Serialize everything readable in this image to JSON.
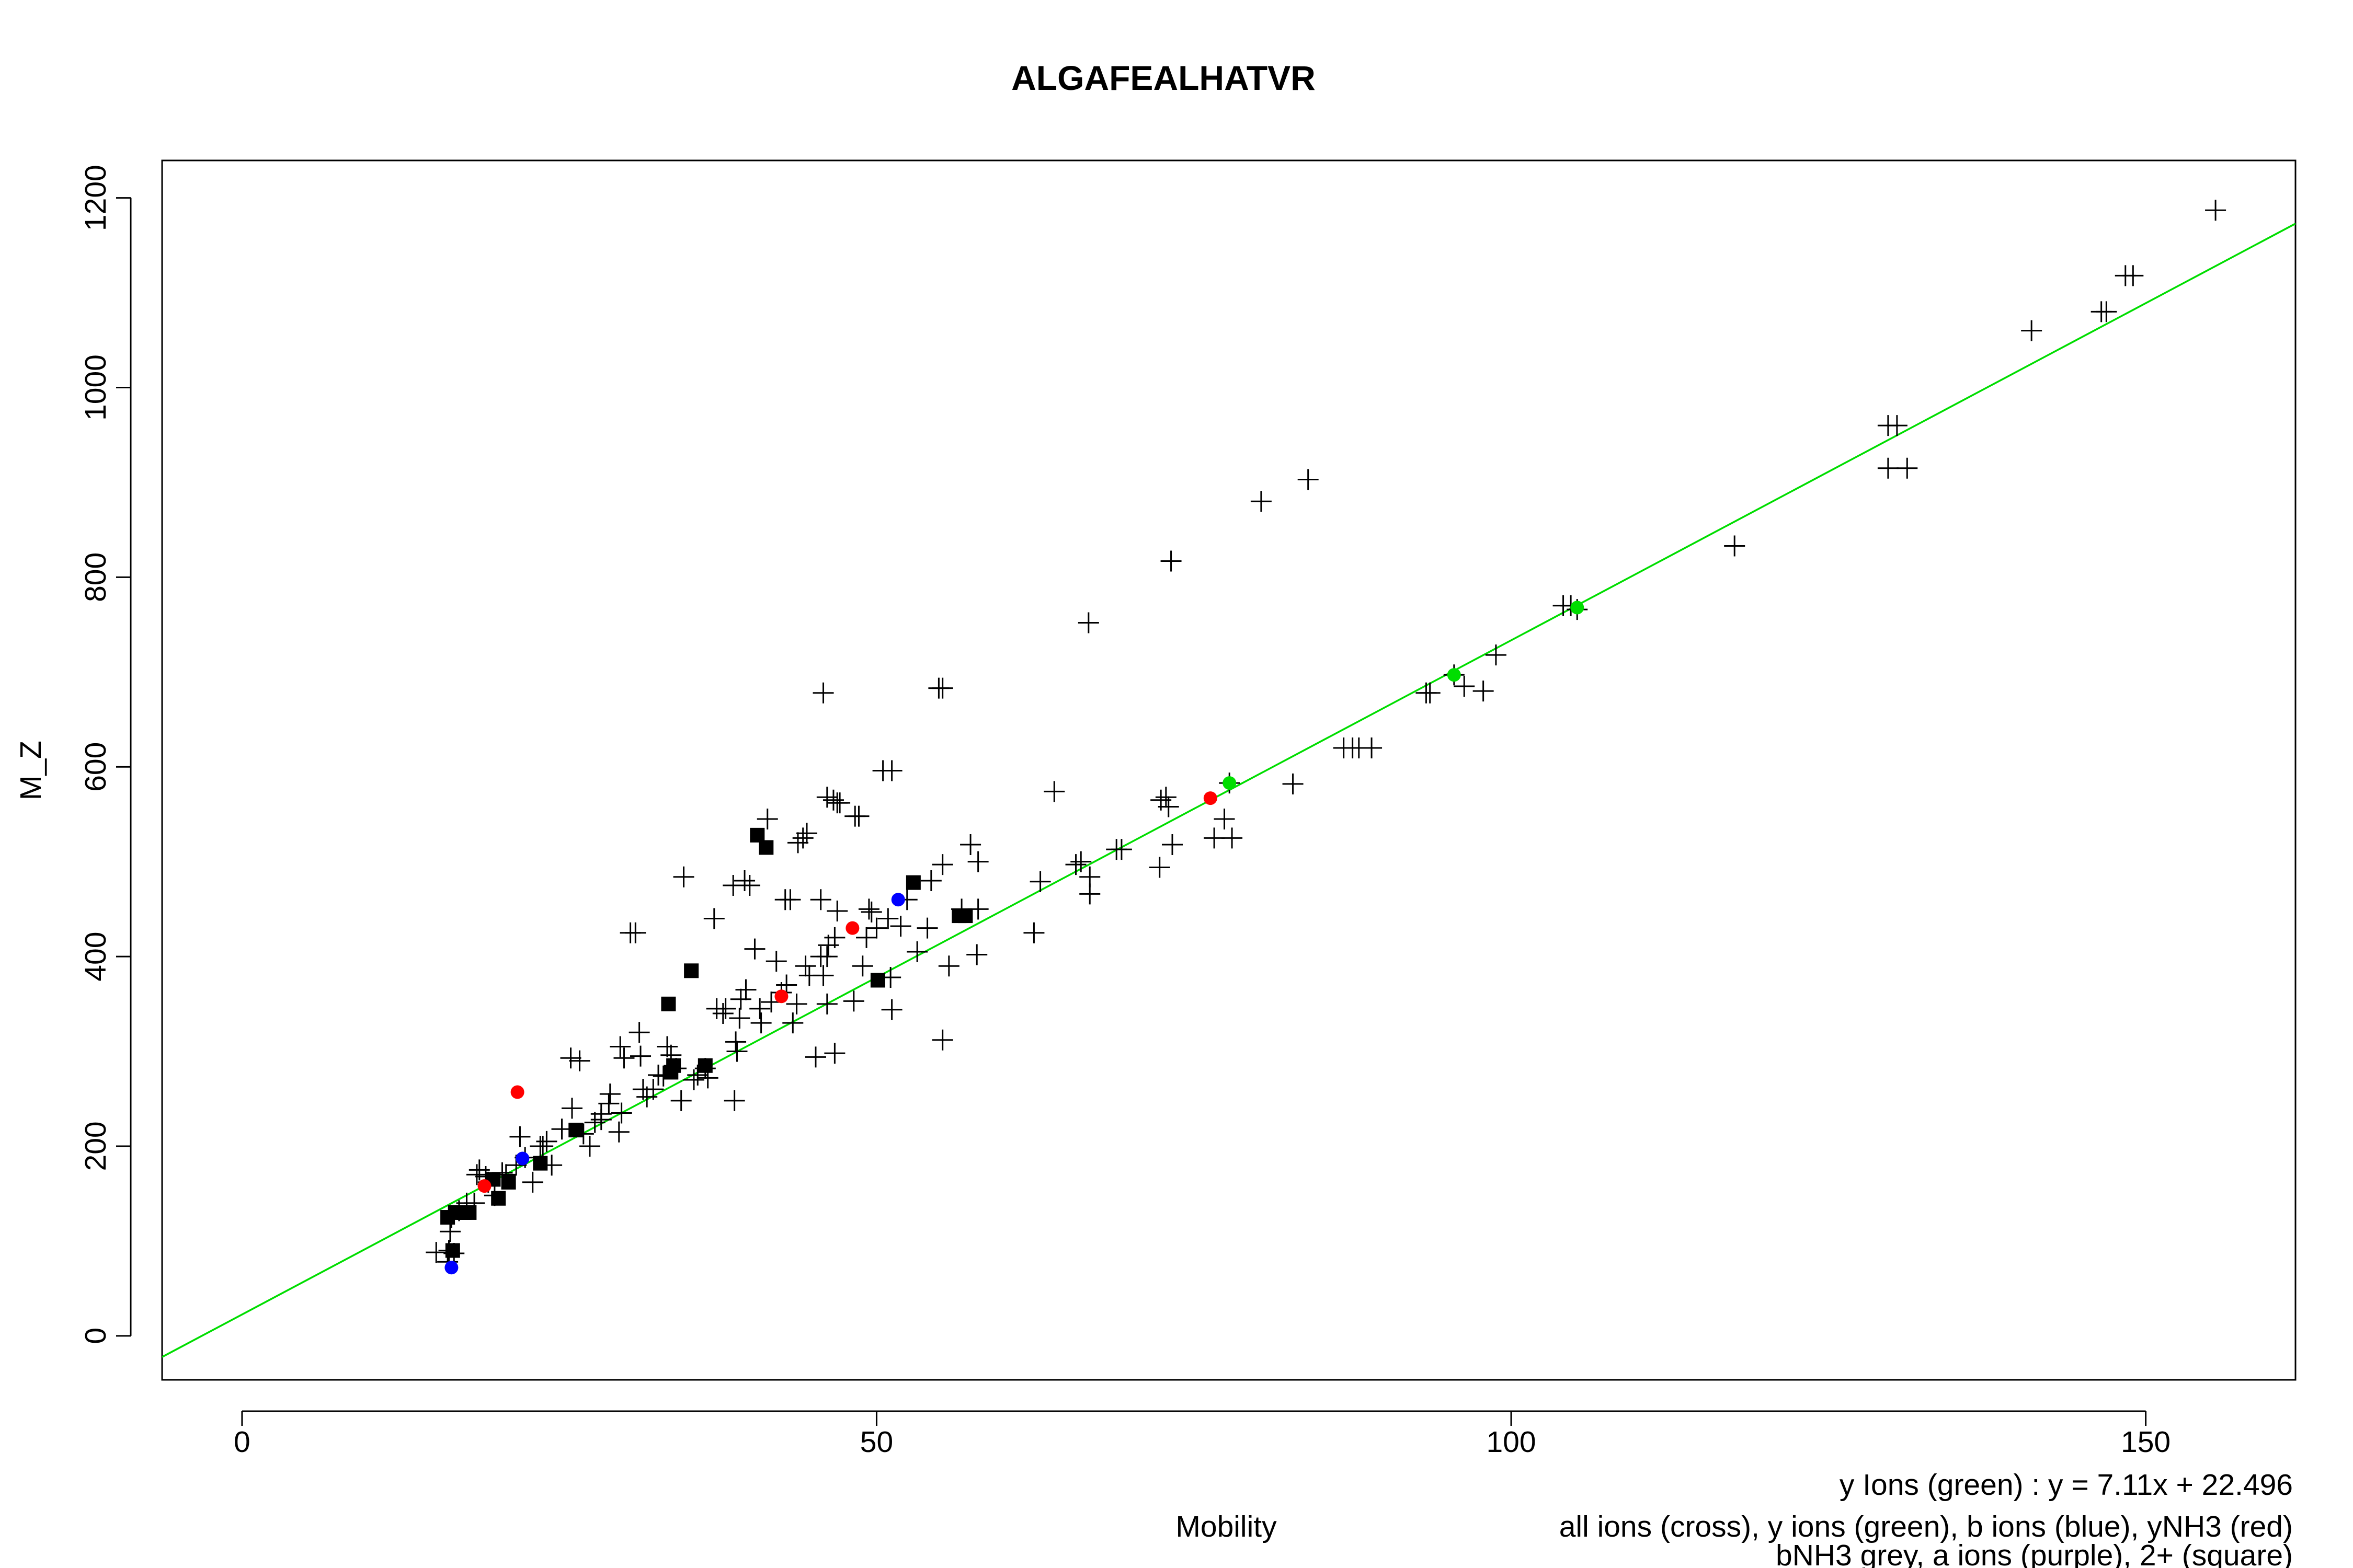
{
  "chart_data": {
    "type": "scatter",
    "title": "ALGAFEALHATVR",
    "xlabel": "Mobility",
    "ylabel": "M_Z",
    "xlim": [
      -6.3,
      161.8
    ],
    "ylim": [
      -46.4,
      1239.5
    ],
    "x_ticks": [
      "0",
      "50",
      "100",
      "150"
    ],
    "y_ticks": [
      "0",
      "200",
      "400",
      "600",
      "800",
      "1000",
      "1200"
    ],
    "grid": false,
    "legend_text": [
      "y Ions (green) : y = 7.11x + 22.496",
      "all ions (cross), y ions (green), b ions (blue), yNH3 (red)",
      "bNH3 grey, a ions (purple), 2+ (square)"
    ],
    "colors": {
      "all_ions": "#000000",
      "y_ions": "#00dd00",
      "b_ions": "#0000ff",
      "yNH3": "#ff0000",
      "fit_line": "#00dd00"
    },
    "fit": {
      "slope": 7.11,
      "intercept": 22.496
    },
    "series": [
      {
        "name": "all ions (cross)",
        "marker": "cross",
        "color": "#000000",
        "points": [
          [
            155.5,
            1187
          ],
          [
            148.4,
            1118
          ],
          [
            149,
            1118
          ],
          [
            146.5,
            1080
          ],
          [
            146.9,
            1080
          ],
          [
            141,
            1060
          ],
          [
            129.7,
            960
          ],
          [
            130.4,
            960
          ],
          [
            129.7,
            915
          ],
          [
            131.2,
            915
          ],
          [
            117.6,
            833
          ],
          [
            104.1,
            770
          ],
          [
            104.7,
            770
          ],
          [
            105.2,
            766
          ],
          [
            95.5,
            697
          ],
          [
            98.8,
            718
          ],
          [
            96.3,
            685
          ],
          [
            97.8,
            680
          ],
          [
            93.3,
            678
          ],
          [
            93.6,
            678
          ],
          [
            88,
            620
          ],
          [
            89,
            620
          ],
          [
            86.8,
            620
          ],
          [
            87.5,
            620
          ],
          [
            84,
            903
          ],
          [
            80.3,
            880
          ],
          [
            73.2,
            817
          ],
          [
            66.7,
            752
          ],
          [
            82.8,
            582
          ],
          [
            77.8,
            583
          ],
          [
            78,
            525
          ],
          [
            77.4,
            545
          ],
          [
            76.6,
            525
          ],
          [
            72.8,
            568
          ],
          [
            72.4,
            565
          ],
          [
            73,
            558
          ],
          [
            73.3,
            518
          ],
          [
            72.3,
            494
          ],
          [
            68.9,
            513
          ],
          [
            69.3,
            513
          ],
          [
            66.1,
            500
          ],
          [
            65.7,
            497
          ],
          [
            66.8,
            484
          ],
          [
            66.8,
            466
          ],
          [
            64,
            574
          ],
          [
            62.9,
            479
          ],
          [
            62.4,
            425
          ],
          [
            58,
            500
          ],
          [
            57.4,
            518
          ],
          [
            56.7,
            450
          ],
          [
            58,
            450
          ],
          [
            57.9,
            402
          ],
          [
            55.2,
            497
          ],
          [
            54.9,
            683
          ],
          [
            55.2,
            683
          ],
          [
            55.7,
            390
          ],
          [
            55.2,
            312
          ],
          [
            54.3,
            480
          ],
          [
            53.2,
            405
          ],
          [
            54,
            430
          ],
          [
            52.4,
            460
          ],
          [
            51.9,
            432
          ],
          [
            51.2,
            344
          ],
          [
            51.1,
            378
          ],
          [
            50.9,
            440
          ],
          [
            50.5,
            596
          ],
          [
            51.2,
            596
          ],
          [
            50,
            430
          ],
          [
            49.6,
            447
          ],
          [
            49.4,
            450
          ],
          [
            49.2,
            420
          ],
          [
            48.9,
            390
          ],
          [
            48.3,
            548
          ],
          [
            48.6,
            548
          ],
          [
            48.2,
            353
          ],
          [
            46.9,
            562
          ],
          [
            47.1,
            562
          ],
          [
            46.6,
            565
          ],
          [
            46.1,
            568
          ],
          [
            46.9,
            448
          ],
          [
            46.7,
            420
          ],
          [
            46.7,
            298
          ],
          [
            45.8,
            678
          ],
          [
            46.2,
            412
          ],
          [
            46.1,
            400
          ],
          [
            45.6,
            400
          ],
          [
            45.8,
            380
          ],
          [
            46.1,
            350
          ],
          [
            45.6,
            460
          ],
          [
            45.2,
            294
          ],
          [
            44.7,
            380
          ],
          [
            44.4,
            390
          ],
          [
            44.2,
            525
          ],
          [
            44.5,
            530
          ],
          [
            43.8,
            520
          ],
          [
            43.7,
            350
          ],
          [
            43.4,
            330
          ],
          [
            43.2,
            460
          ],
          [
            42.8,
            460
          ],
          [
            42.9,
            370
          ],
          [
            42.5,
            362
          ],
          [
            42.1,
            395
          ],
          [
            41.7,
            352
          ],
          [
            41.4,
            545
          ],
          [
            40.8,
            345
          ],
          [
            40.4,
            408
          ],
          [
            40.9,
            330
          ],
          [
            40,
            475
          ],
          [
            39.6,
            480
          ],
          [
            39.7,
            365
          ],
          [
            39.3,
            355
          ],
          [
            39.2,
            335
          ],
          [
            38.9,
            310
          ],
          [
            39,
            300
          ],
          [
            38.8,
            248
          ],
          [
            38.7,
            475
          ],
          [
            38.1,
            345
          ],
          [
            37.9,
            340
          ],
          [
            37.4,
            345
          ],
          [
            37.2,
            440
          ],
          [
            36.7,
            272
          ],
          [
            36.5,
            282
          ],
          [
            35.9,
            275
          ],
          [
            35.6,
            270
          ],
          [
            34.8,
            484
          ],
          [
            34.6,
            248
          ],
          [
            34.2,
            282
          ],
          [
            33.8,
            296
          ],
          [
            33.5,
            305
          ],
          [
            33.2,
            274
          ],
          [
            32.8,
            275
          ],
          [
            32.4,
            260
          ],
          [
            31.6,
            260
          ],
          [
            31.9,
            252
          ],
          [
            31.4,
            295
          ],
          [
            31.3,
            320
          ],
          [
            30.6,
            425
          ],
          [
            31,
            425
          ],
          [
            30.1,
            293
          ],
          [
            29.8,
            305
          ],
          [
            29.9,
            235
          ],
          [
            29.7,
            215
          ],
          [
            29,
            255
          ],
          [
            28.9,
            245
          ],
          [
            28.3,
            234
          ],
          [
            28.3,
            228
          ],
          [
            27.8,
            225
          ],
          [
            27.4,
            200
          ],
          [
            26.9,
            213
          ],
          [
            26.6,
            290
          ],
          [
            25.9,
            293
          ],
          [
            26,
            240
          ],
          [
            25.2,
            218
          ],
          [
            24.4,
            180
          ],
          [
            24,
            205
          ],
          [
            23.7,
            200
          ],
          [
            23.5,
            200
          ],
          [
            22.9,
            162
          ],
          [
            22.3,
            188
          ],
          [
            21.9,
            210
          ],
          [
            21.6,
            180
          ],
          [
            20.8,
            170
          ],
          [
            20.5,
            172
          ],
          [
            19.9,
            148
          ],
          [
            19.4,
            162
          ],
          [
            19.2,
            168
          ],
          [
            18.7,
            175
          ],
          [
            18.5,
            170
          ],
          [
            18.3,
            140
          ],
          [
            17.7,
            140
          ],
          [
            17.1,
            132
          ],
          [
            16.5,
            125
          ],
          [
            16.4,
            110
          ],
          [
            16.3,
            90
          ],
          [
            16.2,
            78
          ],
          [
            16.7,
            87
          ],
          [
            15.3,
            88
          ]
        ]
      },
      {
        "name": "2+ (square)",
        "marker": "square",
        "color": "#000000",
        "points": [
          [
            52.9,
            478
          ],
          [
            56.5,
            443
          ],
          [
            57,
            443
          ],
          [
            50.1,
            375
          ],
          [
            40.6,
            528
          ],
          [
            41.3,
            515
          ],
          [
            35.4,
            385
          ],
          [
            33.6,
            350
          ],
          [
            34,
            285
          ],
          [
            33.8,
            278
          ],
          [
            36.5,
            285
          ],
          [
            26.3,
            217
          ],
          [
            23.5,
            182
          ],
          [
            21,
            162
          ],
          [
            20.2,
            145
          ],
          [
            19.8,
            165
          ],
          [
            17.9,
            130
          ],
          [
            17.5,
            130
          ],
          [
            16.8,
            130
          ],
          [
            16.2,
            125
          ],
          [
            16.6,
            90
          ]
        ]
      },
      {
        "name": "y ions (green)",
        "marker": "dot",
        "color": "#00dd00",
        "points": [
          [
            105.2,
            768
          ],
          [
            95.5,
            697
          ],
          [
            77.8,
            583
          ]
        ]
      },
      {
        "name": "b ions (blue)",
        "marker": "dot",
        "color": "#0000ff",
        "points": [
          [
            51.7,
            460
          ],
          [
            22.1,
            187
          ],
          [
            16.5,
            72
          ]
        ]
      },
      {
        "name": "yNH3 (red)",
        "marker": "dot",
        "color": "#ff0000",
        "points": [
          [
            76.3,
            567
          ],
          [
            48.1,
            430
          ],
          [
            42.5,
            358
          ],
          [
            21.7,
            257
          ],
          [
            19.1,
            158
          ]
        ]
      }
    ]
  }
}
